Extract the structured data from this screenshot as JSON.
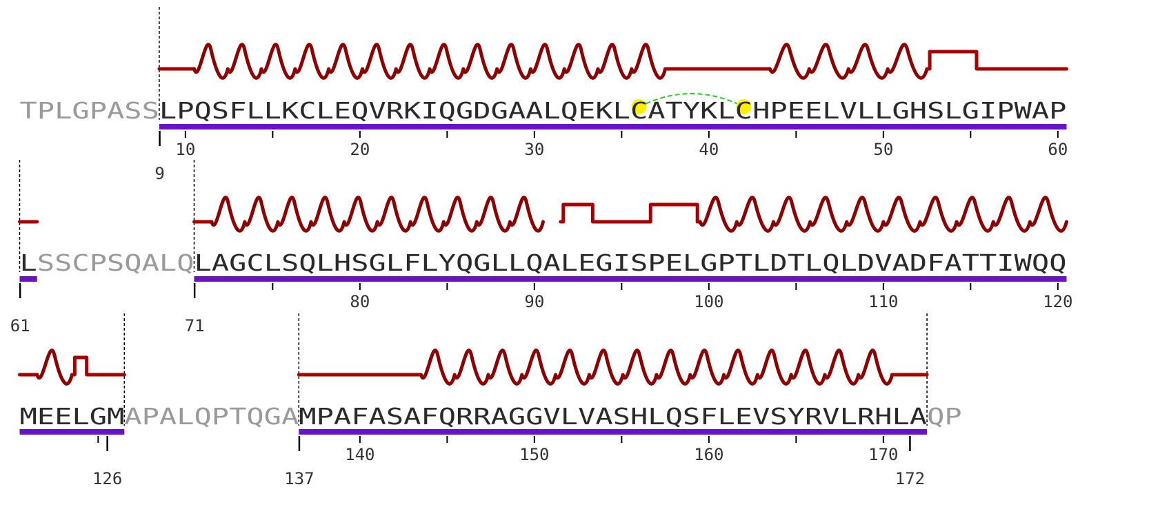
{
  "colors": {
    "helix": "#8b0000",
    "helix_highlight": "#ff1a1a",
    "coil": "#a80000",
    "chain_bar": "#6a12c8",
    "tick": "#000000",
    "disulfide_dot": "#ffee00",
    "disulfide_link": "#22cc22",
    "modelled_text": "#2a2a2a",
    "unmodelled_text": "#9a9a9a"
  },
  "rows": [
    {
      "segments": [
        {
          "text": "TPLGPASS",
          "modelled": false
        },
        {
          "text": "LPQSFLLKCLEQVRKIQGDGAALQEKLCATYKLCHPEELVLLGHSLGIPWAP",
          "modelled": true
        }
      ],
      "bars": [
        [
          9,
          60
        ]
      ],
      "boundaries": [
        9
      ],
      "ss": [
        {
          "type": "coil",
          "from": 9,
          "to": 10
        },
        {
          "type": "helix",
          "from": 11,
          "to": 37
        },
        {
          "type": "coil",
          "from": 38,
          "to": 43
        },
        {
          "type": "helix",
          "from": 44,
          "to": 52
        },
        {
          "type": "turn",
          "from": 53,
          "to": 55
        },
        {
          "type": "coil",
          "from": 56,
          "to": 60
        }
      ],
      "labels": [
        "9",
        "10",
        "20",
        "30",
        "40",
        "50",
        "60"
      ],
      "disulfide": [
        36,
        42
      ]
    },
    {
      "segments": [
        {
          "text": "L",
          "modelled": true
        },
        {
          "text": "SSCPSQALQ",
          "modelled": false
        },
        {
          "text": "LAGCLSQLHSGLFLYQGLLQALEGISPELGPTLDTLQLDVADFATTIWQQ",
          "modelled": true
        }
      ],
      "bars": [
        [
          61,
          61
        ],
        [
          71,
          120
        ]
      ],
      "boundaries": [
        61,
        71
      ],
      "ss": [
        {
          "type": "coil",
          "from": 61,
          "to": 61
        },
        {
          "type": "coil",
          "from": 71,
          "to": 71
        },
        {
          "type": "helix",
          "from": 72,
          "to": 90
        },
        {
          "type": "turn",
          "from": 92,
          "to": 93
        },
        {
          "type": "coil",
          "from": 94,
          "to": 96
        },
        {
          "type": "turn",
          "from": 97,
          "to": 99
        },
        {
          "type": "helix",
          "from": 100,
          "to": 120
        }
      ],
      "labels": [
        "61",
        "71",
        "80",
        "90",
        "100",
        "110",
        "120"
      ],
      "disulfide": null
    },
    {
      "segments": [
        {
          "text": "MEELGM",
          "modelled": true
        },
        {
          "text": "APALQPTQGA",
          "modelled": false
        },
        {
          "text": "MPAFASAFQRRAGGVLVASHLQSFLEVSYRVLRHLA",
          "modelled": true
        },
        {
          "text": "QP",
          "modelled": false
        }
      ],
      "bars": [
        [
          121,
          126
        ],
        [
          137,
          172
        ]
      ],
      "boundaries": [
        126,
        137,
        172
      ],
      "ss": [
        {
          "type": "coil",
          "from": 121,
          "to": 121
        },
        {
          "type": "helix",
          "from": 122,
          "to": 123
        },
        {
          "type": "turn",
          "from": 124,
          "to": 124
        },
        {
          "type": "coil",
          "from": 125,
          "to": 126
        },
        {
          "type": "coil",
          "from": 137,
          "to": 143
        },
        {
          "type": "helix",
          "from": 144,
          "to": 170
        },
        {
          "type": "coil",
          "from": 171,
          "to": 172
        }
      ],
      "labels": [
        "126",
        "137",
        "140",
        "150",
        "160",
        "170",
        "172"
      ],
      "disulfide": null
    }
  ]
}
